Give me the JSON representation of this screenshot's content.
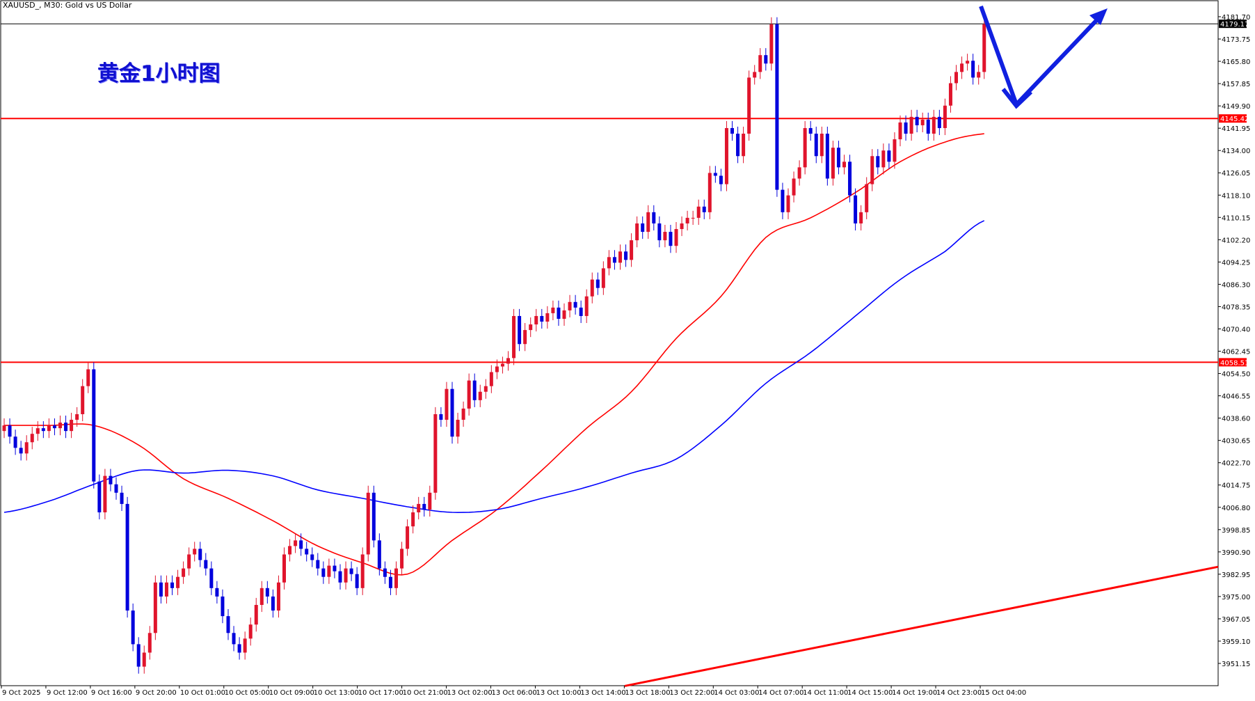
{
  "header": {
    "symbol_title": "XAUUSD_, M30:  Gold vs US Dollar"
  },
  "annotation": {
    "text": "黄金1小时图",
    "color": "#1010d0"
  },
  "chart_data": {
    "type": "candlestick",
    "title": "XAUUSD_, M30:  Gold vs US Dollar",
    "ylim": [
      3945.0,
      4184.0
    ],
    "y_ticks": [
      "4181.70",
      "4173.75",
      "4165.80",
      "4157.85",
      "4149.90",
      "4141.95",
      "4134.00",
      "4126.05",
      "4118.10",
      "4110.15",
      "4102.20",
      "4094.25",
      "4086.30",
      "4078.35",
      "4070.40",
      "4062.45",
      "4054.50",
      "4046.55",
      "4038.60",
      "4030.65",
      "4022.70",
      "4014.75",
      "4006.80",
      "3998.85",
      "3990.90",
      "3982.95",
      "3975.00",
      "3967.05",
      "3959.10",
      "3951.15"
    ],
    "x_ticks": [
      "9 Oct 2025",
      "9 Oct 12:00",
      "9 Oct 16:00",
      "9 Oct 20:00",
      "10 Oct 01:00",
      "10 Oct 05:00",
      "10 Oct 09:00",
      "10 Oct 13:00",
      "10 Oct 17:00",
      "10 Oct 21:00",
      "13 Oct 02:00",
      "13 Oct 06:00",
      "13 Oct 10:00",
      "13 Oct 14:00",
      "13 Oct 18:00",
      "13 Oct 22:00",
      "14 Oct 03:00",
      "14 Oct 07:00",
      "14 Oct 11:00",
      "14 Oct 15:00",
      "14 Oct 19:00",
      "14 Oct 23:00",
      "15 Oct 04:00"
    ],
    "colors": {
      "bull": "#e0142c",
      "bear": "#0000dd",
      "ma_fast": "#ff0000",
      "ma_slow": "#0000ff",
      "level": "#ff0000",
      "trend": "#ff0000",
      "arrow": "#1020e0"
    },
    "close": [
      4036,
      4032,
      4028,
      4026,
      4030,
      4033,
      4035,
      4034,
      4036,
      4035,
      4037,
      4034,
      4038,
      4040,
      4050,
      4056,
      4016,
      4005,
      4018,
      4015,
      4012,
      4008,
      3970,
      3958,
      3950,
      3955,
      3962,
      3980,
      3975,
      3980,
      3978,
      3982,
      3985,
      3990,
      3992,
      3988,
      3985,
      3978,
      3975,
      3968,
      3962,
      3958,
      3955,
      3960,
      3965,
      3972,
      3978,
      3975,
      3970,
      3980,
      3990,
      3993,
      3995,
      3992,
      3990,
      3988,
      3985,
      3982,
      3986,
      3984,
      3980,
      3985,
      3983,
      3978,
      3990,
      4012,
      3995,
      3985,
      3982,
      3978,
      3985,
      3992,
      4000,
      4005,
      4008,
      4006,
      4012,
      4040,
      4038,
      4049,
      4032,
      4038,
      4042,
      4052,
      4045,
      4048,
      4050,
      4055,
      4057,
      4058,
      4060,
      4075,
      4065,
      4070,
      4072,
      4075,
      4073,
      4076,
      4078,
      4074,
      4077,
      4080,
      4078,
      4075,
      4082,
      4088,
      4085,
      4092,
      4096,
      4094,
      4098,
      4095,
      4102,
      4108,
      4105,
      4112,
      4108,
      4102,
      4105,
      4100,
      4106,
      4108,
      4110,
      4110,
      4114,
      4112,
      4126,
      4125,
      4122,
      4142,
      4140,
      4132,
      4140,
      4160,
      4162,
      4168,
      4165,
      4179,
      4120,
      4112,
      4118,
      4124,
      4128,
      4142,
      4140,
      4132,
      4140,
      4124,
      4135,
      4128,
      4130,
      4118,
      4108,
      4112,
      4122,
      4132,
      4128,
      4134,
      4130,
      4138,
      4144,
      4140,
      4146,
      4143,
      4145,
      4140,
      4146,
      4142,
      4150,
      4158,
      4162,
      4165,
      4166,
      4160,
      4162,
      4179
    ],
    "ma_fast_every_8_bars": [
      4036,
      4036,
      4036,
      4029,
      4017,
      4010,
      4002,
      3993,
      3987,
      3983,
      3995,
      4006,
      4020,
      4035,
      4048,
      4067,
      4082,
      4103,
      4110,
      4119,
      4130,
      4137,
      4140
    ],
    "ma_slow_every_8_bars": [
      4005,
      4009,
      4015,
      4020,
      4019,
      4020,
      4018,
      4013,
      4010,
      4007,
      4005,
      4006,
      4010,
      4014,
      4019,
      4024,
      4036,
      4051,
      4062,
      4075,
      4088,
      4098,
      4109
    ],
    "levels": [
      {
        "price": 4145.42,
        "label": "4145.42"
      },
      {
        "price": 4058.51,
        "label": "4058.51"
      }
    ],
    "current_price": {
      "price": 4179.17,
      "label": "4179.17"
    },
    "trendline": {
      "start_time": "13 Oct 18:00",
      "start_price": 3943.1,
      "end_price": 3985.6
    }
  }
}
